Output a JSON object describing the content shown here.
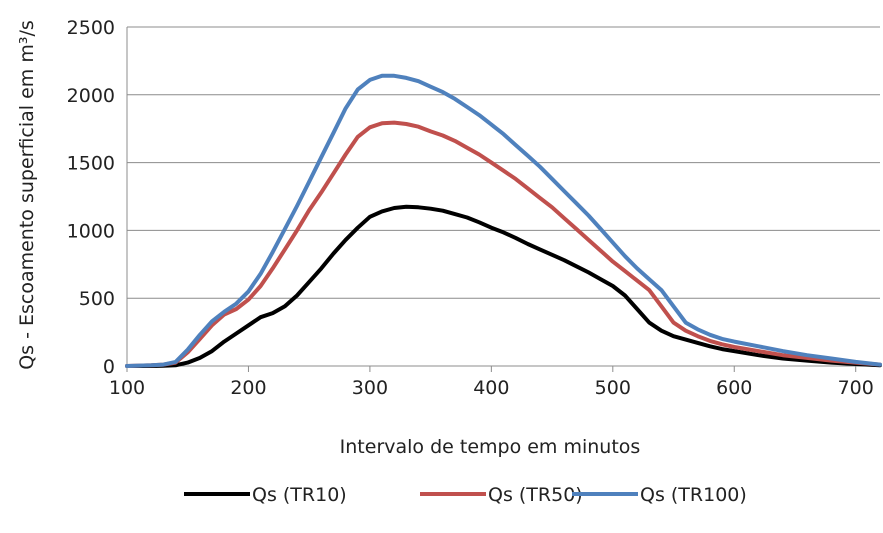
{
  "chart_data": {
    "type": "line",
    "title": "",
    "xlabel": "Intervalo de tempo em minutos",
    "ylabel": "Qs - Escoamento superficial em m³/s",
    "xlim": [
      100,
      720
    ],
    "ylim": [
      0,
      2500
    ],
    "xticks": [
      100,
      200,
      300,
      400,
      500,
      600,
      700
    ],
    "yticks": [
      0,
      500,
      1000,
      1500,
      2000,
      2500
    ],
    "grid": "horizontal",
    "legend_position": "bottom",
    "series": [
      {
        "name": "Qs (TR10)",
        "color": "#000000",
        "x": [
          100,
          120,
          130,
          140,
          150,
          160,
          170,
          180,
          190,
          200,
          210,
          220,
          230,
          240,
          250,
          260,
          270,
          280,
          290,
          300,
          310,
          320,
          330,
          340,
          350,
          360,
          370,
          380,
          390,
          400,
          410,
          420,
          430,
          440,
          450,
          460,
          470,
          480,
          490,
          500,
          510,
          520,
          530,
          540,
          550,
          560,
          570,
          580,
          590,
          600,
          620,
          640,
          660,
          680,
          700,
          720
        ],
        "values": [
          0,
          0,
          2,
          5,
          25,
          60,
          110,
          180,
          240,
          300,
          360,
          390,
          440,
          520,
          620,
          720,
          830,
          930,
          1020,
          1100,
          1140,
          1165,
          1175,
          1170,
          1160,
          1145,
          1120,
          1095,
          1060,
          1020,
          985,
          945,
          900,
          860,
          820,
          780,
          735,
          690,
          640,
          590,
          520,
          420,
          320,
          260,
          220,
          195,
          170,
          145,
          125,
          110,
          80,
          55,
          40,
          25,
          15,
          5
        ]
      },
      {
        "name": "Qs (TR50)",
        "color": "#c0504d",
        "x": [
          100,
          120,
          130,
          140,
          150,
          160,
          170,
          180,
          190,
          200,
          210,
          220,
          230,
          240,
          250,
          260,
          270,
          280,
          290,
          300,
          310,
          320,
          330,
          340,
          350,
          360,
          370,
          380,
          390,
          400,
          410,
          420,
          430,
          440,
          450,
          460,
          470,
          480,
          490,
          500,
          510,
          520,
          530,
          540,
          550,
          560,
          570,
          580,
          590,
          600,
          620,
          640,
          660,
          680,
          700,
          720
        ],
        "values": [
          0,
          5,
          10,
          25,
          100,
          200,
          300,
          380,
          420,
          490,
          590,
          720,
          860,
          1000,
          1150,
          1280,
          1420,
          1560,
          1690,
          1760,
          1790,
          1795,
          1785,
          1765,
          1730,
          1700,
          1660,
          1610,
          1560,
          1500,
          1440,
          1380,
          1310,
          1240,
          1170,
          1090,
          1010,
          930,
          850,
          770,
          700,
          630,
          560,
          440,
          320,
          260,
          220,
          185,
          160,
          140,
          110,
          80,
          60,
          40,
          25,
          10
        ]
      },
      {
        "name": "Qs (TR100)",
        "color": "#4f81bd",
        "x": [
          100,
          120,
          130,
          140,
          150,
          160,
          170,
          180,
          190,
          200,
          210,
          220,
          230,
          240,
          250,
          260,
          270,
          280,
          290,
          300,
          310,
          320,
          330,
          340,
          350,
          360,
          370,
          380,
          390,
          400,
          410,
          420,
          430,
          440,
          450,
          460,
          470,
          480,
          490,
          500,
          510,
          520,
          530,
          540,
          550,
          560,
          570,
          580,
          590,
          600,
          620,
          640,
          660,
          680,
          700,
          720
        ],
        "values": [
          0,
          5,
          10,
          30,
          120,
          230,
          330,
          400,
          460,
          550,
          680,
          840,
          1010,
          1180,
          1360,
          1540,
          1720,
          1900,
          2040,
          2110,
          2140,
          2140,
          2125,
          2100,
          2060,
          2020,
          1970,
          1910,
          1850,
          1780,
          1710,
          1630,
          1550,
          1470,
          1380,
          1290,
          1200,
          1110,
          1010,
          910,
          810,
          720,
          640,
          560,
          440,
          320,
          270,
          230,
          200,
          180,
          145,
          110,
          80,
          55,
          30,
          10
        ]
      }
    ]
  }
}
